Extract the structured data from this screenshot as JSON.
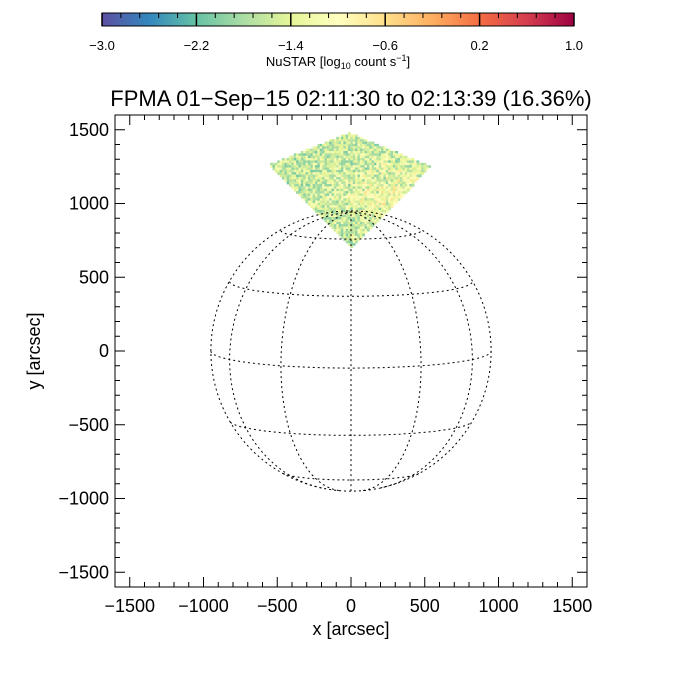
{
  "chart_data": {
    "type": "heatmap",
    "title": "FPMA 01−Sep−15 02:11:30 to 02:13:39 (16.36%)",
    "xlabel": "x [arcsec]",
    "ylabel": "y [arcsec]",
    "xlim": [
      -1600,
      1600
    ],
    "ylim": [
      -1600,
      1600
    ],
    "x_ticks": [
      -1500,
      -1000,
      -500,
      0,
      500,
      1000,
      1500
    ],
    "y_ticks": [
      -1500,
      -1000,
      -500,
      0,
      500,
      1000,
      1500
    ],
    "x_tick_labels": [
      "−1500",
      "−1000",
      "−500",
      "0",
      "500",
      "1000",
      "1500"
    ],
    "y_tick_labels": [
      "−1500",
      "−1000",
      "−500",
      "0",
      "500",
      "1000",
      "1500"
    ],
    "solar_radius_arcsec": 950,
    "grid": {
      "latitudes_deg": [
        -60,
        -30,
        0,
        30,
        60
      ],
      "longitudes_deg": [
        -60,
        -30,
        0,
        30,
        60
      ],
      "style": "dotted"
    },
    "map_region": {
      "shape": "diamond",
      "vertices": [
        [
          -10,
          1480
        ],
        [
          545,
          1250
        ],
        [
          0,
          700
        ],
        [
          -560,
          1260
        ]
      ],
      "value_range_log10": [
        -2.4,
        -0.6
      ]
    },
    "colorbar": {
      "colormap": "spectral_r",
      "range": [
        -3.0,
        1.0
      ],
      "ticks": [
        -3.0,
        -2.2,
        -1.4,
        -0.6,
        0.2,
        1.0
      ],
      "tick_labels": [
        "−3.0",
        "−2.2",
        "−1.4",
        "−0.6",
        "0.2",
        "1.0"
      ],
      "label_main": "NuSTAR [log",
      "label_sub": "10",
      "label_rest": " count s",
      "label_sup": "−1",
      "label_close": "]",
      "colors": [
        "#5e4fa2",
        "#3288bd",
        "#66c2a5",
        "#abdda4",
        "#e6f598",
        "#ffffbf",
        "#fee08b",
        "#fdae61",
        "#f46d43",
        "#d53e4f",
        "#9e0142"
      ]
    }
  }
}
